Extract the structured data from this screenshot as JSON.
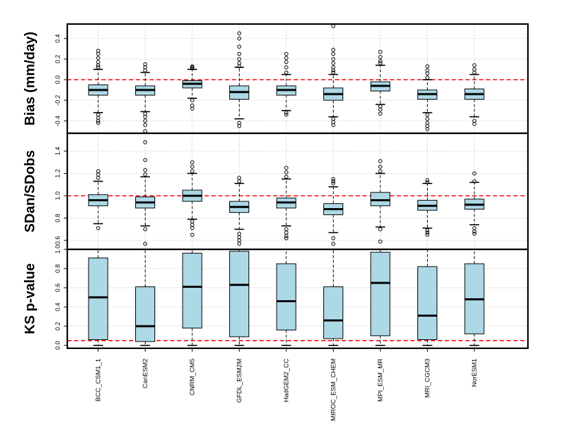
{
  "colors": {
    "box_fill": "#add8e6",
    "reference_line": "#ff0000",
    "grid": "#c8c8c8"
  },
  "chart_data": [
    {
      "type": "boxplot",
      "ylabel": "Bias (mm/day)",
      "ylim": [
        -0.52,
        0.54
      ],
      "yticks": [
        -0.4,
        -0.2,
        0.0,
        0.2,
        0.4
      ],
      "ytick_labels": [
        "-0.4",
        "-0.2",
        "0.0",
        "0.2",
        "0.4"
      ],
      "reference_line": 0.0,
      "grid": true,
      "categories": [
        "BCC_CSM1_1",
        "CanESM2",
        "CNRM_CM5",
        "GFDL_ESM2M",
        "HadGEM2_CC",
        "MIROC_ESM_CHEM",
        "MPI_ESM_MR",
        "MRI_CGCM3",
        "NorESM1"
      ],
      "boxes": [
        {
          "q1": -0.15,
          "median": -0.1,
          "q3": -0.05,
          "whisker_low": -0.32,
          "whisker_high": 0.1,
          "outliers": [
            -0.34,
            -0.37,
            -0.4,
            -0.42,
            0.12,
            0.14,
            0.17,
            0.21,
            0.25,
            0.28
          ]
        },
        {
          "q1": -0.15,
          "median": -0.1,
          "q3": -0.06,
          "whisker_low": -0.31,
          "whisker_high": 0.07,
          "outliers": [
            -0.33,
            -0.36,
            -0.4,
            -0.44,
            -0.5,
            0.09,
            0.12,
            0.15
          ]
        },
        {
          "q1": -0.08,
          "median": -0.04,
          "q3": -0.01,
          "whisker_low": -0.18,
          "whisker_high": 0.1,
          "outliers": [
            -0.2,
            -0.25,
            -0.28,
            0.11,
            0.12,
            0.13
          ]
        },
        {
          "q1": -0.19,
          "median": -0.12,
          "q3": -0.06,
          "whisker_low": -0.38,
          "whisker_high": 0.12,
          "outliers": [
            -0.42,
            -0.45,
            0.13,
            0.16,
            0.2,
            0.25,
            0.32,
            0.4,
            0.45
          ]
        },
        {
          "q1": -0.15,
          "median": -0.1,
          "q3": -0.06,
          "whisker_low": -0.3,
          "whisker_high": 0.05,
          "outliers": [
            -0.32,
            -0.34,
            0.07,
            0.12,
            0.17,
            0.21,
            0.25
          ]
        },
        {
          "q1": -0.2,
          "median": -0.14,
          "q3": -0.08,
          "whisker_low": -0.36,
          "whisker_high": 0.05,
          "outliers": [
            -0.38,
            -0.41,
            -0.44,
            0.07,
            0.09,
            0.12,
            0.16,
            0.2,
            0.25,
            0.29,
            0.52
          ]
        },
        {
          "q1": -0.11,
          "median": -0.06,
          "q3": -0.02,
          "whisker_low": -0.24,
          "whisker_high": 0.14,
          "outliers": [
            -0.26,
            -0.29,
            -0.33,
            0.16,
            0.18,
            0.22,
            0.27
          ]
        },
        {
          "q1": -0.19,
          "median": -0.14,
          "q3": -0.1,
          "whisker_low": -0.32,
          "whisker_high": 0.0,
          "outliers": [
            -0.34,
            -0.38,
            -0.42,
            -0.45,
            -0.48,
            0.02,
            0.06,
            0.09,
            0.13
          ]
        },
        {
          "q1": -0.19,
          "median": -0.14,
          "q3": -0.09,
          "whisker_low": -0.36,
          "whisker_high": 0.05,
          "outliers": [
            -0.4,
            -0.43,
            0.07,
            0.1,
            0.14
          ]
        }
      ]
    },
    {
      "type": "boxplot",
      "ylabel": "SDan/SDobs",
      "ylim": [
        0.52,
        1.56
      ],
      "yticks": [
        0.6,
        0.8,
        1.0,
        1.2,
        1.4
      ],
      "ytick_labels": [
        "0.6",
        "0.8",
        "1.0",
        "1.2",
        "1.4"
      ],
      "reference_line": 1.0,
      "grid": true,
      "categories": [
        "BCC_CSM1_1",
        "CanESM2",
        "CNRM_CM5",
        "GFDL_ESM2M",
        "HadGEM2_CC",
        "MIROC_ESM_CHEM",
        "MPI_ESM_MR",
        "MRI_CGCM3",
        "NorESM1"
      ],
      "boxes": [
        {
          "q1": 0.91,
          "median": 0.96,
          "q3": 1.01,
          "whisker_low": 0.75,
          "whisker_high": 1.13,
          "outliers": [
            0.71,
            1.16,
            1.19,
            1.22
          ]
        },
        {
          "q1": 0.89,
          "median": 0.94,
          "q3": 0.99,
          "whisker_low": 0.73,
          "whisker_high": 1.17,
          "outliers": [
            0.7,
            0.57,
            1.19,
            1.23,
            1.32,
            1.48
          ]
        },
        {
          "q1": 0.95,
          "median": 1.0,
          "q3": 1.05,
          "whisker_low": 0.79,
          "whisker_high": 1.2,
          "outliers": [
            0.77,
            0.74,
            0.71,
            0.65,
            1.22,
            1.26,
            1.3
          ]
        },
        {
          "q1": 0.85,
          "median": 0.9,
          "q3": 0.95,
          "whisker_low": 0.7,
          "whisker_high": 1.11,
          "outliers": [
            0.66,
            0.63,
            0.6,
            0.57,
            1.13,
            1.16
          ]
        },
        {
          "q1": 0.89,
          "median": 0.94,
          "q3": 0.98,
          "whisker_low": 0.73,
          "whisker_high": 1.15,
          "outliers": [
            0.7,
            0.67,
            0.64,
            0.62,
            1.17,
            1.21,
            1.25
          ]
        },
        {
          "q1": 0.83,
          "median": 0.88,
          "q3": 0.93,
          "whisker_low": 0.67,
          "whisker_high": 1.08,
          "outliers": [
            0.62,
            0.57,
            1.11,
            1.13,
            1.15
          ]
        },
        {
          "q1": 0.91,
          "median": 0.96,
          "q3": 1.03,
          "whisker_low": 0.72,
          "whisker_high": 1.2,
          "outliers": [
            0.7,
            0.59,
            1.22,
            1.26,
            1.31
          ]
        },
        {
          "q1": 0.87,
          "median": 0.91,
          "q3": 0.96,
          "whisker_low": 0.71,
          "whisker_high": 1.11,
          "outliers": [
            0.69,
            0.67,
            0.65,
            1.12,
            1.14
          ]
        },
        {
          "q1": 0.88,
          "median": 0.92,
          "q3": 0.97,
          "whisker_low": 0.74,
          "whisker_high": 1.12,
          "outliers": [
            0.71,
            0.68,
            0.66,
            1.13,
            1.2
          ]
        }
      ]
    },
    {
      "type": "boxplot",
      "ylabel": "KS p-value",
      "ylim": [
        -0.03,
        1.0
      ],
      "yticks": [
        0.0,
        0.2,
        0.4,
        0.6,
        0.8,
        1.0
      ],
      "ytick_labels": [
        "0.0",
        "0.2",
        "0.4",
        "0.6",
        "0.8",
        "1.0"
      ],
      "reference_line": 0.05,
      "grid": true,
      "categories": [
        "BCC_CSM1_1",
        "CanESM2",
        "CNRM_CM5",
        "GFDL_ESM2M",
        "HadGEM2_CC",
        "MIROC_ESM_CHEM",
        "MPI_ESM_MR",
        "MRI_CGCM3",
        "NorESM1"
      ],
      "boxes": [
        {
          "q1": 0.06,
          "median": 0.5,
          "q3": 0.91,
          "whisker_low": 0.0,
          "whisker_high": 1.0,
          "outliers": []
        },
        {
          "q1": 0.04,
          "median": 0.2,
          "q3": 0.61,
          "whisker_low": 0.0,
          "whisker_high": 1.0,
          "outliers": []
        },
        {
          "q1": 0.18,
          "median": 0.61,
          "q3": 0.96,
          "whisker_low": 0.0,
          "whisker_high": 1.0,
          "outliers": []
        },
        {
          "q1": 0.09,
          "median": 0.63,
          "q3": 0.98,
          "whisker_low": 0.0,
          "whisker_high": 1.0,
          "outliers": []
        },
        {
          "q1": 0.16,
          "median": 0.46,
          "q3": 0.85,
          "whisker_low": 0.0,
          "whisker_high": 1.0,
          "outliers": []
        },
        {
          "q1": 0.07,
          "median": 0.26,
          "q3": 0.61,
          "whisker_low": 0.0,
          "whisker_high": 1.0,
          "outliers": []
        },
        {
          "q1": 0.1,
          "median": 0.65,
          "q3": 0.97,
          "whisker_low": 0.0,
          "whisker_high": 1.0,
          "outliers": []
        },
        {
          "q1": 0.06,
          "median": 0.31,
          "q3": 0.82,
          "whisker_low": 0.0,
          "whisker_high": 1.0,
          "outliers": []
        },
        {
          "q1": 0.12,
          "median": 0.48,
          "q3": 0.85,
          "whisker_low": 0.0,
          "whisker_high": 1.0,
          "outliers": []
        }
      ]
    }
  ]
}
